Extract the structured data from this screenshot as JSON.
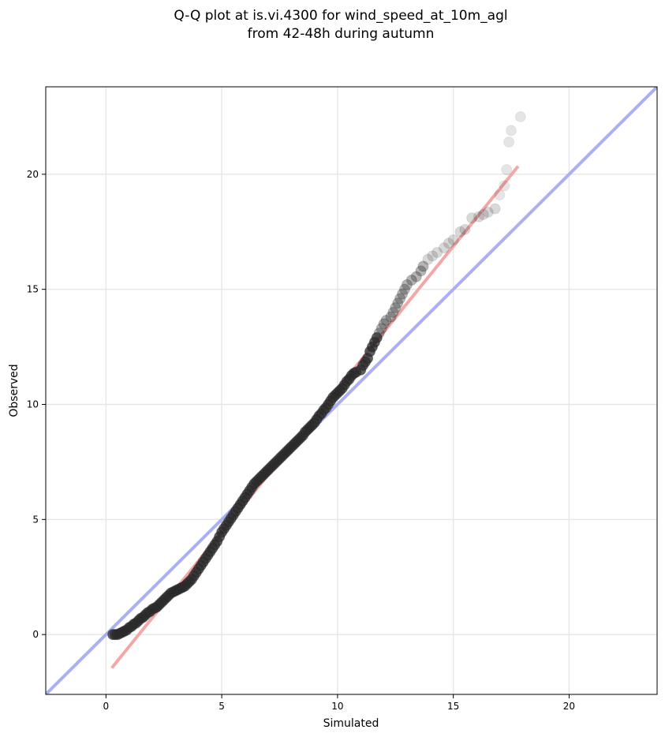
{
  "chart_data": {
    "type": "scatter",
    "title_line1": "Q-Q plot at is.vi.4300 for wind_speed_at_10m_agl",
    "title_line2": "from 42-48h during autumn",
    "xlabel": "Simulated",
    "ylabel": "Observed",
    "xlim": [
      -2.6,
      23.8
    ],
    "ylim": [
      -2.6,
      23.8
    ],
    "xticks": [
      0,
      5,
      10,
      15,
      20
    ],
    "yticks": [
      0,
      5,
      10,
      15,
      20
    ],
    "grid": true,
    "point_color": "#2a2a2a",
    "reference_line": {
      "label": "1:1",
      "color": "#aab0f2",
      "from": [
        -2.6,
        -2.6
      ],
      "to": [
        23.8,
        23.8
      ]
    },
    "fit_line": {
      "color": "#f4a7a7",
      "from": [
        0.25,
        -1.45
      ],
      "to": [
        17.8,
        20.35
      ]
    },
    "points": [
      [
        0.3,
        0.0
      ],
      [
        0.4,
        0.0
      ],
      [
        0.5,
        0.0
      ],
      [
        0.6,
        0.05
      ],
      [
        0.7,
        0.1
      ],
      [
        0.8,
        0.15
      ],
      [
        0.9,
        0.2
      ],
      [
        1.0,
        0.3
      ],
      [
        1.1,
        0.35
      ],
      [
        1.2,
        0.45
      ],
      [
        1.3,
        0.5
      ],
      [
        1.4,
        0.6
      ],
      [
        1.5,
        0.7
      ],
      [
        1.6,
        0.75
      ],
      [
        1.7,
        0.85
      ],
      [
        1.8,
        0.95
      ],
      [
        1.9,
        1.0
      ],
      [
        2.0,
        1.1
      ],
      [
        2.1,
        1.15
      ],
      [
        2.2,
        1.2
      ],
      [
        2.3,
        1.3
      ],
      [
        2.4,
        1.4
      ],
      [
        2.5,
        1.5
      ],
      [
        2.6,
        1.6
      ],
      [
        2.7,
        1.7
      ],
      [
        2.8,
        1.8
      ],
      [
        2.9,
        1.85
      ],
      [
        3.0,
        1.9
      ],
      [
        3.1,
        1.95
      ],
      [
        3.2,
        2.0
      ],
      [
        3.3,
        2.05
      ],
      [
        3.4,
        2.1
      ],
      [
        3.5,
        2.2
      ],
      [
        3.6,
        2.3
      ],
      [
        3.7,
        2.4
      ],
      [
        3.8,
        2.55
      ],
      [
        3.9,
        2.7
      ],
      [
        4.0,
        2.85
      ],
      [
        4.1,
        3.0
      ],
      [
        4.2,
        3.15
      ],
      [
        4.3,
        3.3
      ],
      [
        4.4,
        3.45
      ],
      [
        4.5,
        3.6
      ],
      [
        4.6,
        3.75
      ],
      [
        4.7,
        3.9
      ],
      [
        4.8,
        4.05
      ],
      [
        4.9,
        4.25
      ],
      [
        5.0,
        4.45
      ],
      [
        5.1,
        4.6
      ],
      [
        5.2,
        4.75
      ],
      [
        5.3,
        4.9
      ],
      [
        5.4,
        5.05
      ],
      [
        5.5,
        5.2
      ],
      [
        5.6,
        5.35
      ],
      [
        5.7,
        5.5
      ],
      [
        5.8,
        5.65
      ],
      [
        5.9,
        5.8
      ],
      [
        6.0,
        5.95
      ],
      [
        6.1,
        6.1
      ],
      [
        6.2,
        6.25
      ],
      [
        6.3,
        6.4
      ],
      [
        6.4,
        6.55
      ],
      [
        6.5,
        6.65
      ],
      [
        6.6,
        6.75
      ],
      [
        6.7,
        6.85
      ],
      [
        6.8,
        6.95
      ],
      [
        6.9,
        7.05
      ],
      [
        7.0,
        7.15
      ],
      [
        7.1,
        7.25
      ],
      [
        7.2,
        7.35
      ],
      [
        7.3,
        7.45
      ],
      [
        7.4,
        7.55
      ],
      [
        7.5,
        7.65
      ],
      [
        7.6,
        7.75
      ],
      [
        7.7,
        7.85
      ],
      [
        7.8,
        7.95
      ],
      [
        7.9,
        8.05
      ],
      [
        8.0,
        8.15
      ],
      [
        8.1,
        8.25
      ],
      [
        8.2,
        8.35
      ],
      [
        8.3,
        8.45
      ],
      [
        8.4,
        8.55
      ],
      [
        8.5,
        8.65
      ],
      [
        8.6,
        8.8
      ],
      [
        8.7,
        8.9
      ],
      [
        8.8,
        9.0
      ],
      [
        8.9,
        9.1
      ],
      [
        9.0,
        9.2
      ],
      [
        9.1,
        9.35
      ],
      [
        9.2,
        9.5
      ],
      [
        9.3,
        9.6
      ],
      [
        9.4,
        9.75
      ],
      [
        9.5,
        9.85
      ],
      [
        9.6,
        10.0
      ],
      [
        9.7,
        10.15
      ],
      [
        9.8,
        10.3
      ],
      [
        9.9,
        10.4
      ],
      [
        10.0,
        10.5
      ],
      [
        10.1,
        10.6
      ],
      [
        10.2,
        10.7
      ],
      [
        10.3,
        10.85
      ],
      [
        10.4,
        11.0
      ],
      [
        10.5,
        11.1
      ],
      [
        10.6,
        11.25
      ],
      [
        10.7,
        11.35
      ],
      [
        10.8,
        11.4
      ],
      [
        11.0,
        11.5
      ],
      [
        11.1,
        11.7
      ],
      [
        11.2,
        11.85
      ],
      [
        11.3,
        12.0
      ],
      [
        11.4,
        12.3
      ],
      [
        11.5,
        12.5
      ],
      [
        11.6,
        12.7
      ],
      [
        11.7,
        12.9
      ],
      [
        11.8,
        13.1
      ],
      [
        11.9,
        13.3
      ],
      [
        12.0,
        13.5
      ],
      [
        12.1,
        13.65
      ],
      [
        12.3,
        13.8
      ],
      [
        12.4,
        14.0
      ],
      [
        12.5,
        14.2
      ],
      [
        12.6,
        14.4
      ],
      [
        12.7,
        14.6
      ],
      [
        12.8,
        14.8
      ],
      [
        12.9,
        15.0
      ],
      [
        13.0,
        15.2
      ],
      [
        13.2,
        15.4
      ],
      [
        13.4,
        15.55
      ],
      [
        13.6,
        15.8
      ],
      [
        13.7,
        16.0
      ],
      [
        13.9,
        16.3
      ],
      [
        14.1,
        16.45
      ],
      [
        14.3,
        16.6
      ],
      [
        14.6,
        16.8
      ],
      [
        14.8,
        17.0
      ],
      [
        15.0,
        17.15
      ],
      [
        15.3,
        17.5
      ],
      [
        15.5,
        17.6
      ],
      [
        15.8,
        18.1
      ],
      [
        16.1,
        18.15
      ],
      [
        16.3,
        18.25
      ],
      [
        16.5,
        18.35
      ],
      [
        16.8,
        18.5
      ],
      [
        17.0,
        19.1
      ],
      [
        17.2,
        19.5
      ],
      [
        17.3,
        20.2
      ],
      [
        17.4,
        21.4
      ],
      [
        17.5,
        21.9
      ],
      [
        17.9,
        22.5
      ]
    ]
  }
}
